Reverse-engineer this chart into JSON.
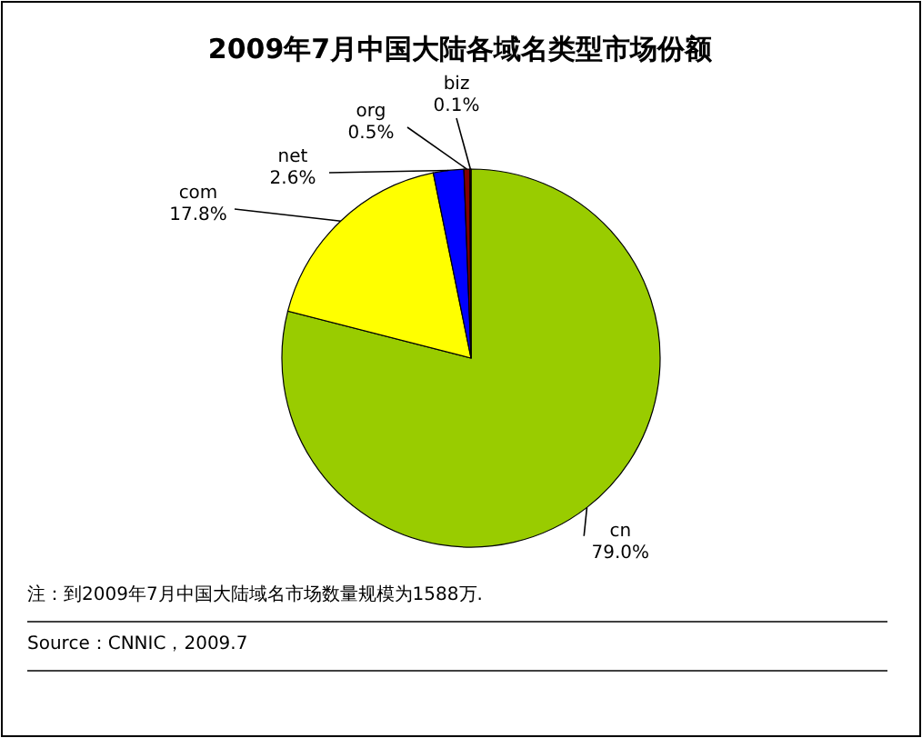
{
  "chart_data": {
    "type": "pie",
    "title": "2009年7月中国大陆各域名类型市场份额",
    "categories": [
      "cn",
      "com",
      "net",
      "org",
      "biz"
    ],
    "values": [
      79.0,
      17.8,
      2.6,
      0.5,
      0.1
    ],
    "colors": [
      "#99cc00",
      "#ffff00",
      "#0000ff",
      "#800000",
      "#ff0000"
    ],
    "value_labels": [
      "79.0%",
      "17.8%",
      "2.6%",
      "0.5%",
      "0.1%"
    ],
    "annotations": [
      "注：到2009年7月中国大陆域名市场数量规模为1588万.",
      "Source：CNNIC，2009.7"
    ]
  }
}
